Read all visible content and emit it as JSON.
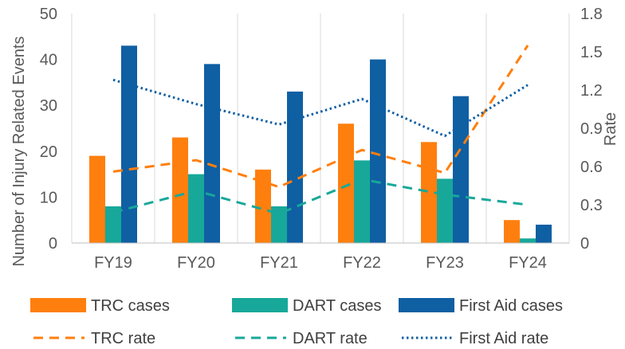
{
  "chart_data": {
    "type": "bar",
    "categories": [
      "FY19",
      "FY20",
      "FY21",
      "FY22",
      "FY23",
      "FY24"
    ],
    "series": [
      {
        "name": "TRC cases",
        "kind": "bar",
        "axis": "left",
        "color": "#FF7F0E",
        "values": [
          19,
          23,
          16,
          26,
          22,
          5
        ]
      },
      {
        "name": "DART cases",
        "kind": "bar",
        "axis": "left",
        "color": "#17A89A",
        "values": [
          8,
          15,
          8,
          18,
          14,
          1
        ]
      },
      {
        "name": "First Aid cases",
        "kind": "bar",
        "axis": "left",
        "color": "#0F5FA3",
        "values": [
          43,
          39,
          33,
          40,
          32,
          4
        ]
      },
      {
        "name": "TRC rate",
        "kind": "line",
        "style": "dashed",
        "axis": "right",
        "color": "#FF7F0E",
        "values": [
          0.56,
          0.65,
          0.44,
          0.73,
          0.55,
          1.55
        ]
      },
      {
        "name": "DART rate",
        "kind": "line",
        "style": "dashed",
        "axis": "right",
        "color": "#17A89A",
        "values": [
          0.24,
          0.41,
          0.23,
          0.5,
          0.38,
          0.3
        ]
      },
      {
        "name": "First Aid rate",
        "kind": "line",
        "style": "dotted",
        "axis": "right",
        "color": "#0F5FA3",
        "values": [
          1.28,
          1.09,
          0.93,
          1.13,
          0.84,
          1.24
        ]
      }
    ],
    "ylabel": "Number of Injury Related Events",
    "y2label": "Rate",
    "ylim": [
      0,
      50
    ],
    "yticks": [
      "0",
      "10",
      "20",
      "30",
      "40",
      "50"
    ],
    "y2lim": [
      0,
      1.8
    ],
    "y2ticks": [
      "0",
      "0.3",
      "0.6",
      "0.9",
      "1.2",
      "1.5",
      "1.8"
    ],
    "grid": "vertical",
    "legend": "bottom"
  }
}
